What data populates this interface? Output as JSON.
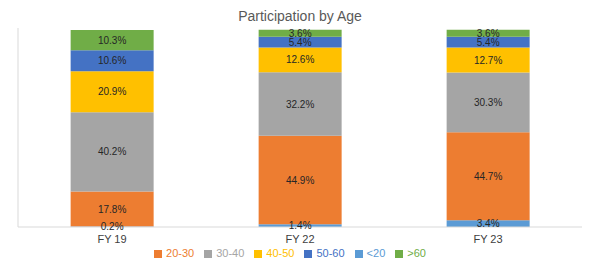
{
  "chart_data": {
    "type": "bar",
    "title": "Participation by Age",
    "categories": [
      "FY 19",
      "FY 22",
      "FY 23"
    ],
    "stacked": true,
    "data_labels": true,
    "legend": "bottom",
    "tick_labels": "x",
    "grid": false,
    "ylim": [
      0,
      101
    ],
    "series": [
      {
        "name": "<20",
        "color": "#5B9BD5",
        "values": [
          0.2,
          1.4,
          3.4
        ],
        "value_labels": [
          "0.2%",
          "1.4%",
          "3.4%"
        ]
      },
      {
        "name": "20-30",
        "color": "#ED7D31",
        "values": [
          17.8,
          44.9,
          44.7
        ],
        "value_labels": [
          "17.8%",
          "44.9%",
          "44.7%"
        ]
      },
      {
        "name": "30-40",
        "color": "#A5A5A5",
        "values": [
          40.2,
          32.2,
          30.3
        ],
        "value_labels": [
          "40.2%",
          "32.2%",
          "30.3%"
        ]
      },
      {
        "name": "40-50",
        "color": "#FFC000",
        "values": [
          20.9,
          12.6,
          12.7
        ],
        "value_labels": [
          "20.9%",
          "12.6%",
          "12.7%"
        ]
      },
      {
        "name": "50-60",
        "color": "#4472C4",
        "values": [
          10.6,
          5.4,
          5.4
        ],
        "value_labels": [
          "10.6%",
          "5.4%",
          "5.4%"
        ]
      },
      {
        "name": ">60",
        "color": "#70AD47",
        "values": [
          10.3,
          3.6,
          3.6
        ],
        "value_labels": [
          "10.3%",
          "3.6%",
          "3.6%"
        ]
      }
    ]
  }
}
